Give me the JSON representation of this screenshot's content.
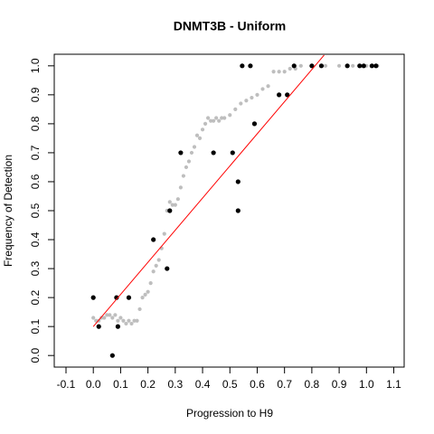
{
  "chart_data": {
    "type": "scatter",
    "title": "DNMT3B - Uniform",
    "xlabel": "Progression to H9",
    "ylabel": "Frequency of Detection",
    "xlim": [
      -0.143,
      1.138
    ],
    "ylim": [
      -0.04,
      1.04
    ],
    "xticks": [
      -0.1,
      {
        "value": 0,
        "label": "0.0"
      },
      0.1,
      0.2,
      0.3,
      0.4,
      0.5,
      0.6,
      0.7,
      0.8,
      0.9,
      {
        "value": 1,
        "label": "1.0"
      },
      1.1
    ],
    "yticks": [
      {
        "value": 0,
        "label": "0.0"
      },
      0.1,
      0.2,
      0.3,
      0.4,
      0.5,
      0.6,
      0.7,
      0.8,
      0.9,
      {
        "value": 1,
        "label": "1.0"
      }
    ],
    "series": [
      {
        "type": "scatter",
        "color": "#bebebe",
        "x": [
          0.0,
          0.01,
          0.02,
          0.03,
          0.04,
          0.05,
          0.06,
          0.07,
          0.08,
          0.09,
          0.1,
          0.11,
          0.12,
          0.13,
          0.14,
          0.15,
          0.16,
          0.17,
          0.18,
          0.19,
          0.2,
          0.21,
          0.22,
          0.23,
          0.24,
          0.25,
          0.26,
          0.27,
          0.28,
          0.29,
          0.3,
          0.31,
          0.32,
          0.33,
          0.34,
          0.35,
          0.36,
          0.37,
          0.38,
          0.39,
          0.4,
          0.41,
          0.42,
          0.43,
          0.44,
          0.45,
          0.46,
          0.47,
          0.48,
          0.5,
          0.52,
          0.54,
          0.56,
          0.58,
          0.6,
          0.62,
          0.64,
          0.66,
          0.68,
          0.7,
          0.72,
          0.74,
          0.76,
          0.8,
          0.85,
          0.9,
          0.95,
          1.0,
          1.04
        ],
        "values": [
          0.13,
          0.12,
          0.12,
          0.13,
          0.13,
          0.14,
          0.14,
          0.13,
          0.14,
          0.12,
          0.13,
          0.12,
          0.11,
          0.12,
          0.11,
          0.12,
          0.12,
          0.16,
          0.2,
          0.21,
          0.22,
          0.25,
          0.29,
          0.31,
          0.33,
          0.37,
          0.42,
          0.5,
          0.53,
          0.52,
          0.52,
          0.54,
          0.58,
          0.62,
          0.65,
          0.67,
          0.7,
          0.72,
          0.76,
          0.75,
          0.78,
          0.8,
          0.82,
          0.81,
          0.81,
          0.82,
          0.81,
          0.82,
          0.82,
          0.83,
          0.85,
          0.87,
          0.88,
          0.89,
          0.9,
          0.92,
          0.93,
          0.98,
          0.98,
          0.98,
          0.99,
          0.99,
          1.0,
          1.0,
          1.0,
          1.0,
          1.0,
          1.0,
          1.0
        ]
      },
      {
        "type": "scatter",
        "color": "#000000",
        "x": [
          0.0,
          0.02,
          0.07,
          0.085,
          0.09,
          0.13,
          0.22,
          0.27,
          0.28,
          0.32,
          0.44,
          0.51,
          0.53,
          0.53,
          0.545,
          0.575,
          0.59,
          0.68,
          0.71,
          0.735,
          0.8,
          0.835,
          0.93,
          0.975,
          0.99,
          1.02,
          1.035
        ],
        "values": [
          0.2,
          0.1,
          0.0,
          0.2,
          0.1,
          0.2,
          0.4,
          0.3,
          0.5,
          0.7,
          0.7,
          0.7,
          0.5,
          0.6,
          1.0,
          1.0,
          0.8,
          0.9,
          0.9,
          1.0,
          1.0,
          1.0,
          1.0,
          1.0,
          1.0,
          1.0,
          1.0
        ]
      },
      {
        "type": "line",
        "color": "#ff0000",
        "x": [
          0.0,
          0.845
        ],
        "values": [
          0.1,
          1.037
        ]
      }
    ]
  }
}
